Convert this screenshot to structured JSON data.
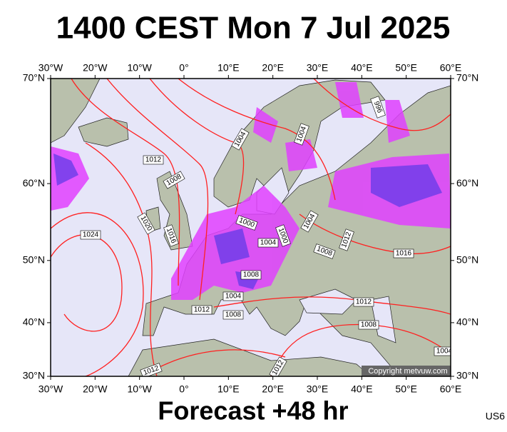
{
  "header": {
    "title": "1400 CEST Mon 7 Jul 2025"
  },
  "map": {
    "projection": "mercator",
    "lonlim": [
      -30,
      60
    ],
    "latlim": [
      30,
      70
    ],
    "lon_ticks": [
      {
        "value": -30,
        "label": "30°W"
      },
      {
        "value": -20,
        "label": "20°W"
      },
      {
        "value": -10,
        "label": "10°W"
      },
      {
        "value": 0,
        "label": "0°"
      },
      {
        "value": 10,
        "label": "10°E"
      },
      {
        "value": 20,
        "label": "20°E"
      },
      {
        "value": 30,
        "label": "30°E"
      },
      {
        "value": 40,
        "label": "40°E"
      },
      {
        "value": 50,
        "label": "50°E"
      },
      {
        "value": 60,
        "label": "60°E"
      }
    ],
    "lat_ticks": [
      {
        "value": 30,
        "label": "30°N"
      },
      {
        "value": 40,
        "label": "40°N"
      },
      {
        "value": 50,
        "label": "50°N"
      },
      {
        "value": 60,
        "label": "60°N"
      },
      {
        "value": 70,
        "label": "70°N"
      }
    ],
    "isobar_labels": [
      1012,
      1008,
      1004,
      1004,
      996,
      1024,
      1020,
      1016,
      1000,
      1000,
      1004,
      1004,
      1012,
      1008,
      1016,
      1008,
      1004,
      1012,
      1008,
      1012,
      1008,
      1004,
      1012,
      1012
    ],
    "copyright": "Copyright metvuw.com"
  },
  "footer": {
    "forecast": "Forecast +48 hr",
    "code": "US6"
  }
}
